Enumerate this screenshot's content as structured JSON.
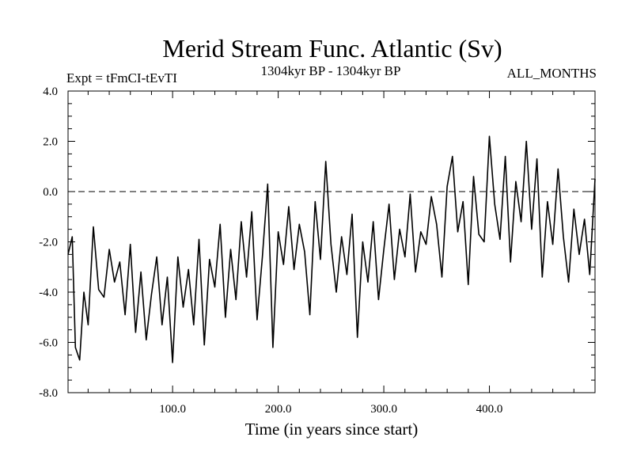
{
  "chart_data": {
    "type": "line",
    "title": "Merid Stream Func. Atlantic (Sv)",
    "subtitle_left": "Expt = tFmCI-tEvTI",
    "subtitle_center": "1304kyr BP - 1304kyr BP",
    "subtitle_right": "ALL_MONTHS",
    "xlabel": "Time (in years since start)",
    "ylabel": "",
    "xlim": [
      1,
      500
    ],
    "ylim": [
      -8,
      4
    ],
    "x_ticks": [
      100,
      200,
      300,
      400
    ],
    "x_tick_labels": [
      "100.0",
      "200.0",
      "300.0",
      "400.0"
    ],
    "y_ticks": [
      -8,
      -6,
      -4,
      -2,
      0,
      2,
      4
    ],
    "y_tick_labels": [
      "-8.0",
      "-6.0",
      "-4.0",
      "-2.0",
      "0.0",
      "2.0",
      "4.0"
    ],
    "zero_line": {
      "value": 0,
      "style": "dashed"
    },
    "series": [
      {
        "name": "Merid Stream Func. Atlantic",
        "color": "#000000",
        "x": [
          1,
          5,
          8,
          12,
          16,
          20,
          25,
          30,
          35,
          40,
          45,
          50,
          55,
          60,
          65,
          70,
          75,
          80,
          85,
          90,
          95,
          100,
          105,
          110,
          115,
          120,
          125,
          130,
          135,
          140,
          145,
          150,
          155,
          160,
          165,
          170,
          175,
          180,
          185,
          190,
          195,
          200,
          205,
          210,
          215,
          220,
          225,
          230,
          235,
          240,
          245,
          250,
          255,
          260,
          265,
          270,
          275,
          280,
          285,
          290,
          295,
          300,
          305,
          310,
          315,
          320,
          325,
          330,
          335,
          340,
          345,
          350,
          355,
          360,
          365,
          370,
          375,
          380,
          385,
          390,
          395,
          400,
          405,
          410,
          415,
          420,
          425,
          430,
          435,
          440,
          445,
          450,
          455,
          460,
          465,
          470,
          475,
          480,
          485,
          490,
          495,
          500
        ],
        "values": [
          -2.5,
          -1.8,
          -6.2,
          -6.7,
          -4.0,
          -5.3,
          -1.4,
          -3.9,
          -4.2,
          -2.3,
          -3.6,
          -2.8,
          -4.9,
          -2.1,
          -5.6,
          -3.2,
          -5.9,
          -4.1,
          -2.6,
          -5.3,
          -3.4,
          -6.8,
          -2.6,
          -4.6,
          -3.1,
          -5.3,
          -1.9,
          -6.1,
          -2.7,
          -3.8,
          -1.3,
          -5.0,
          -2.3,
          -4.3,
          -1.2,
          -3.4,
          -0.8,
          -5.1,
          -2.6,
          0.3,
          -6.2,
          -1.6,
          -2.9,
          -0.6,
          -3.1,
          -1.3,
          -2.4,
          -4.9,
          -0.4,
          -2.7,
          1.2,
          -2.1,
          -4.0,
          -1.8,
          -3.3,
          -0.9,
          -5.8,
          -2.0,
          -3.6,
          -1.2,
          -4.3,
          -2.3,
          -0.5,
          -3.5,
          -1.5,
          -2.6,
          -0.1,
          -3.2,
          -1.6,
          -2.1,
          -0.2,
          -1.3,
          -3.4,
          0.2,
          1.4,
          -1.6,
          -0.4,
          -3.7,
          0.6,
          -1.7,
          -2.0,
          2.2,
          -0.5,
          -1.9,
          1.4,
          -2.8,
          0.4,
          -1.2,
          2.0,
          -1.5,
          1.3,
          -3.4,
          -0.4,
          -2.1,
          0.9,
          -1.8,
          -3.6,
          -0.7,
          -2.5,
          -1.1,
          -3.3,
          0.5
        ]
      }
    ]
  }
}
